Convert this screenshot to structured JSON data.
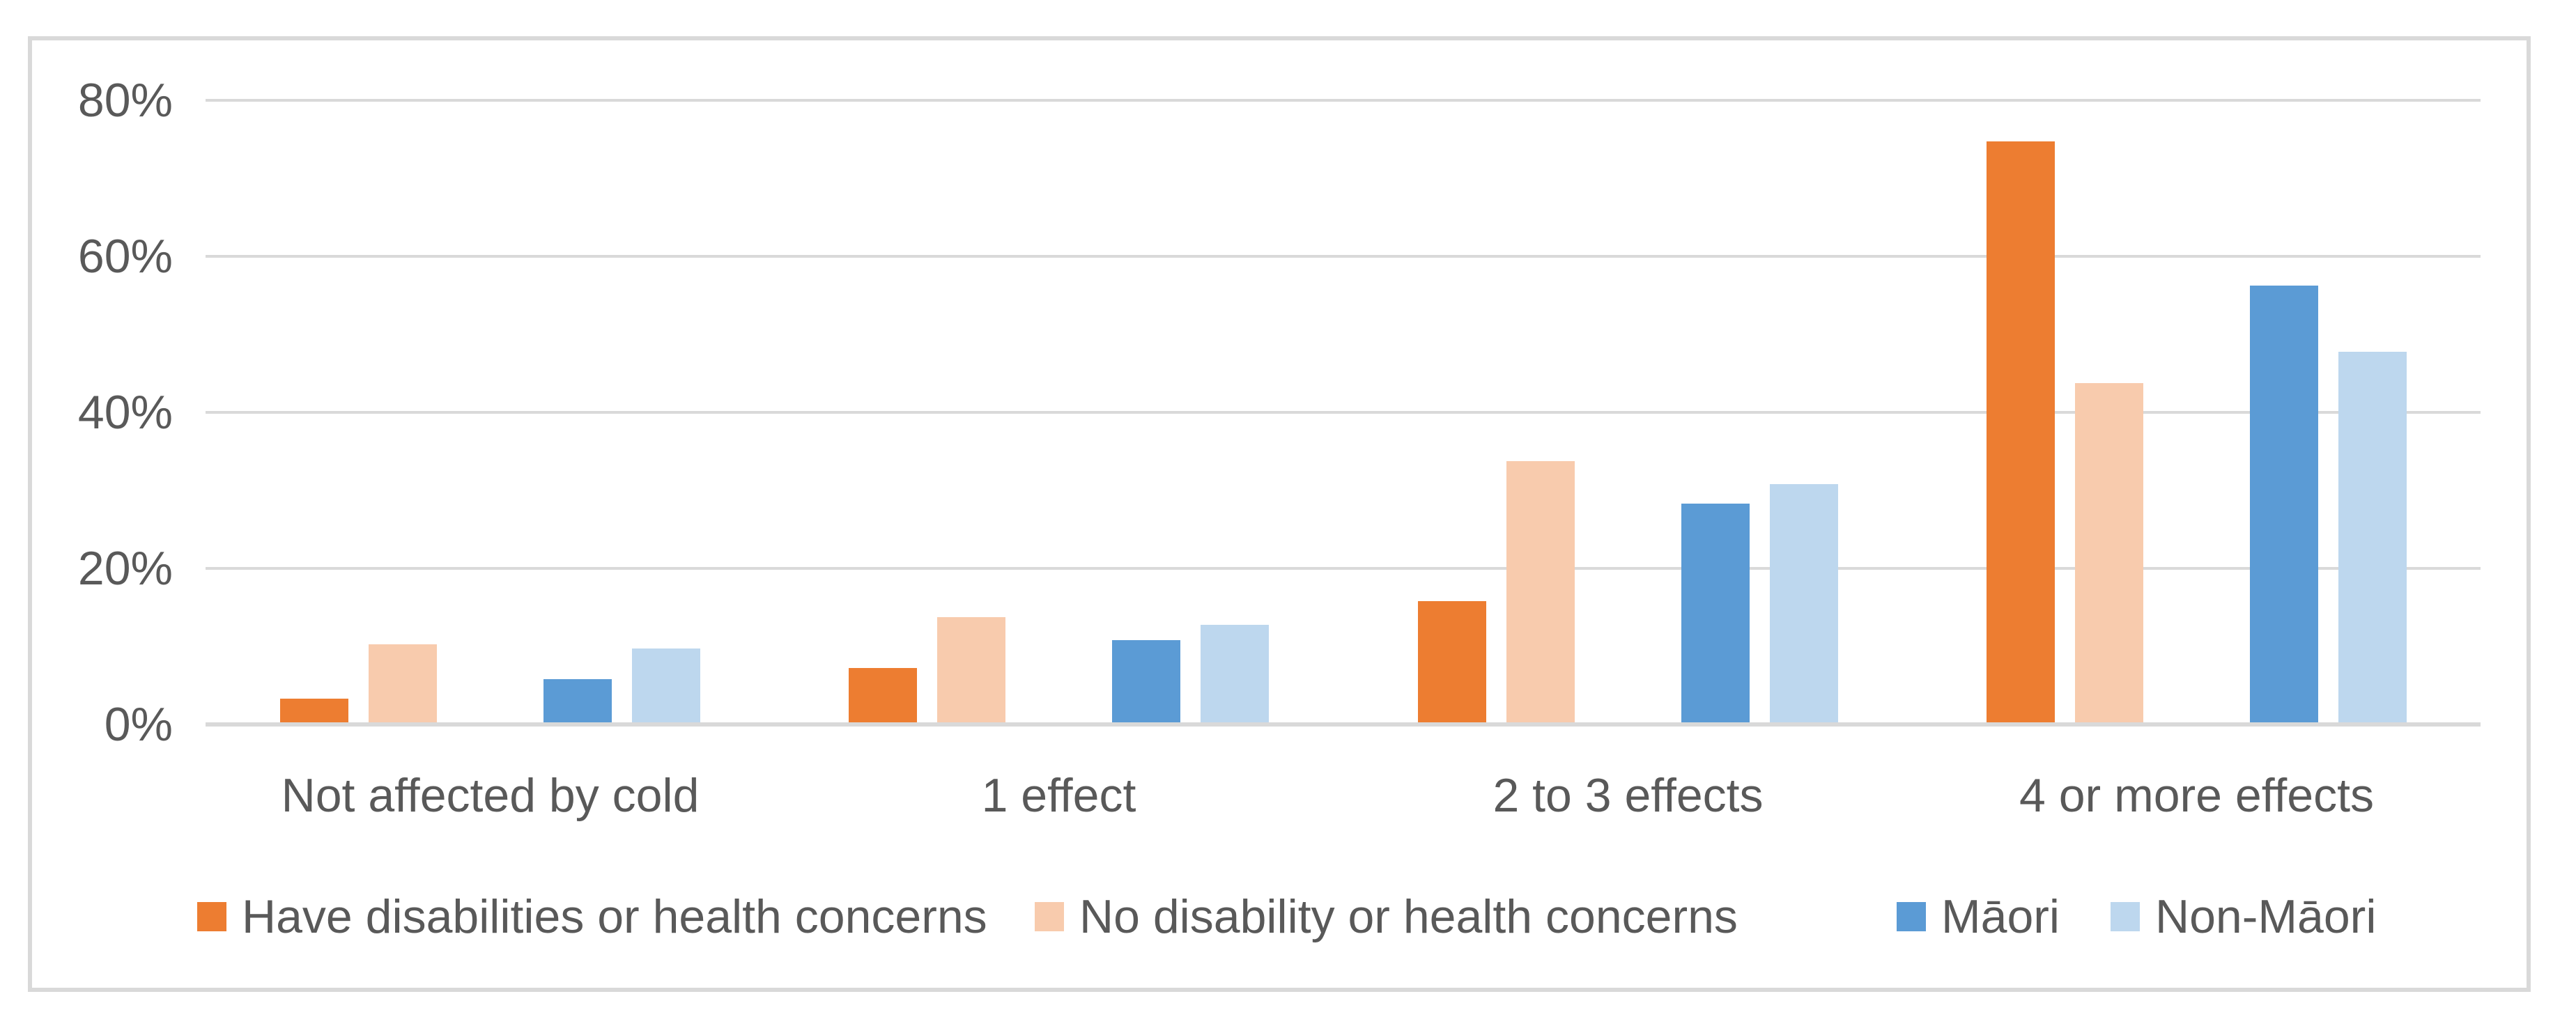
{
  "page": {
    "background_color": "#FFFFFF",
    "frame_border_color": "#D9D9D9"
  },
  "chart_data": {
    "type": "bar",
    "title": "",
    "xlabel": "",
    "ylabel": "",
    "categories": [
      "Not affected by cold",
      "1 effect",
      "2 to 3 effects",
      "4 or more effects"
    ],
    "series": [
      {
        "name": "Have disabilities or health concerns",
        "color": "#ED7D31",
        "values": [
          3,
          7,
          15.5,
          74.5
        ]
      },
      {
        "name": "No disability or health concerns",
        "color": "#F8CBAD",
        "values": [
          10,
          13.5,
          33.5,
          43.5
        ]
      },
      {
        "name": "Māori",
        "color": "#5B9BD5",
        "values": [
          5.5,
          10.5,
          28,
          56
        ]
      },
      {
        "name": "Non-Māori",
        "color": "#BDD7EE",
        "values": [
          9.5,
          12.5,
          30.5,
          47.5
        ]
      }
    ],
    "ylim": [
      0,
      80
    ],
    "y_ticks": [
      0,
      20,
      40,
      60,
      80
    ],
    "y_tick_labels": [
      "0%",
      "20%",
      "40%",
      "60%",
      "80%"
    ],
    "grid": true,
    "legend_position": "bottom",
    "styles": {
      "text_color": "#595959",
      "gridline_color": "#D9D9D9",
      "axis_line_color": "#D9D9D9"
    }
  }
}
